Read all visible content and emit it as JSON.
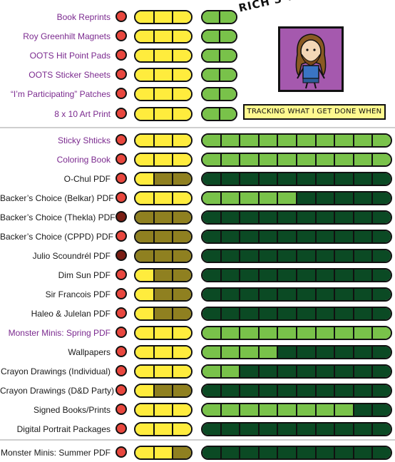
{
  "header": {
    "title": "RICH'S WORKOMETER!",
    "tagline": "TRACKING WHAT I GET DONE WHEN"
  },
  "colors": {
    "red": "#e8473e",
    "darkred": "#7a1e14",
    "yellow": "#ffec3d",
    "olive": "#8f8020",
    "lightgreen": "#79c24a",
    "darkgreen": "#0b4a24",
    "purple": "#a559ae"
  },
  "items": [
    {
      "label": "Book Reprints",
      "link": true,
      "dot": "red",
      "phase": [
        "yellow",
        "yellow",
        "yellow"
      ],
      "cells": 2,
      "done": 2
    },
    {
      "label": "Roy Greenhilt Magnets",
      "link": true,
      "dot": "red",
      "phase": [
        "yellow",
        "yellow",
        "yellow"
      ],
      "cells": 2,
      "done": 2
    },
    {
      "label": "OOTS Hit Point Pads",
      "link": true,
      "dot": "red",
      "phase": [
        "yellow",
        "yellow",
        "yellow"
      ],
      "cells": 2,
      "done": 2
    },
    {
      "label": "OOTS Sticker Sheets",
      "link": true,
      "dot": "red",
      "phase": [
        "yellow",
        "yellow",
        "yellow"
      ],
      "cells": 2,
      "done": 2
    },
    {
      "label": "“I’m Participating” Patches",
      "link": true,
      "dot": "red",
      "phase": [
        "yellow",
        "yellow",
        "yellow"
      ],
      "cells": 2,
      "done": 2
    },
    {
      "label": "8 x 10 Art Print",
      "link": true,
      "dot": "red",
      "phase": [
        "yellow",
        "yellow",
        "yellow"
      ],
      "cells": 2,
      "done": 2
    },
    {
      "label": "Sticky Shticks",
      "link": true,
      "dot": "red",
      "phase": [
        "yellow",
        "yellow",
        "yellow"
      ],
      "cells": 10,
      "done": 10
    },
    {
      "label": "Coloring Book",
      "link": true,
      "dot": "red",
      "phase": [
        "yellow",
        "yellow",
        "yellow"
      ],
      "cells": 10,
      "done": 10
    },
    {
      "label": "O-Chul PDF",
      "link": false,
      "dot": "red",
      "phase": [
        "yellow",
        "olive",
        "olive"
      ],
      "cells": 10,
      "done": 0
    },
    {
      "label": "Backer’s Choice (Belkar) PDF",
      "link": false,
      "dot": "red",
      "phase": [
        "yellow",
        "yellow",
        "yellow"
      ],
      "cells": 10,
      "done": 5
    },
    {
      "label": "Backer’s Choice (Thekla) PDF",
      "link": false,
      "dot": "darkred",
      "phase": [
        "olive",
        "olive",
        "olive"
      ],
      "cells": 10,
      "done": 0
    },
    {
      "label": "Backer’s Choice (CPPD) PDF",
      "link": false,
      "dot": "red",
      "phase": [
        "olive",
        "olive",
        "olive"
      ],
      "cells": 10,
      "done": 0
    },
    {
      "label": "Julio Scoundrél PDF",
      "link": false,
      "dot": "darkred",
      "phase": [
        "olive",
        "olive",
        "olive"
      ],
      "cells": 10,
      "done": 0
    },
    {
      "label": "Dim Sun PDF",
      "link": false,
      "dot": "red",
      "phase": [
        "yellow",
        "olive",
        "olive"
      ],
      "cells": 10,
      "done": 0
    },
    {
      "label": "Sir Francois  PDF",
      "link": false,
      "dot": "red",
      "phase": [
        "yellow",
        "olive",
        "olive"
      ],
      "cells": 10,
      "done": 0
    },
    {
      "label": "Haleo & Julelan PDF",
      "link": false,
      "dot": "red",
      "phase": [
        "yellow",
        "olive",
        "olive"
      ],
      "cells": 10,
      "done": 0
    },
    {
      "label": "Monster Minis: Spring PDF",
      "link": true,
      "dot": "red",
      "phase": [
        "yellow",
        "yellow",
        "yellow"
      ],
      "cells": 10,
      "done": 10
    },
    {
      "label": "Wallpapers",
      "link": false,
      "dot": "red",
      "phase": [
        "yellow",
        "yellow",
        "yellow"
      ],
      "cells": 10,
      "done": 4
    },
    {
      "label": "Crayon Drawings (Individual)",
      "link": false,
      "dot": "red",
      "phase": [
        "yellow",
        "yellow",
        "yellow"
      ],
      "cells": 10,
      "done": 2
    },
    {
      "label": "Crayon Drawings (D&D Party)",
      "link": false,
      "dot": "red",
      "phase": [
        "yellow",
        "olive",
        "olive"
      ],
      "cells": 10,
      "done": 0
    },
    {
      "label": "Signed Books/Prints",
      "link": false,
      "dot": "red",
      "phase": [
        "yellow",
        "yellow",
        "yellow"
      ],
      "cells": 10,
      "done": 8
    },
    {
      "label": "Digital Portrait Packages",
      "link": false,
      "dot": "red",
      "phase": [
        "yellow",
        "yellow",
        "yellow"
      ],
      "cells": 10,
      "done": 0
    },
    {
      "label": "Monster Minis: Summer PDF",
      "link": false,
      "dot": "red",
      "phase": [
        "yellow",
        "yellow",
        "olive"
      ],
      "cells": 10,
      "done": 0
    }
  ]
}
